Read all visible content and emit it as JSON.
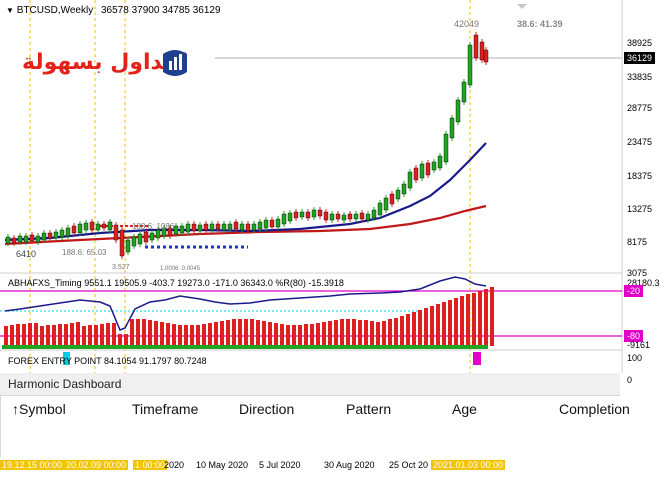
{
  "symbol_label": "BTCUSD,Weekly",
  "ohlc": "36578 37900 34785 36129",
  "logo_text": "التداول بسهولة",
  "peak_label": "42049",
  "overlap_label": "38.6: 41.39",
  "low_label": "6410",
  "mini_label_1": "188.6: 1086",
  "mini_label_2": "188.6: 65.03",
  "mini_label_3": "3.527",
  "mini_label_4": "1.0006: 0.0045",
  "price_axis": [
    "38925",
    "33835",
    "28775",
    "23475",
    "18375",
    "13275",
    "8175",
    "3075"
  ],
  "current_price": "36129",
  "indicator1": {
    "name": "ABHAFXS_Timing 9551.1 19505.9 -403.7 19273.0 -171.0 36343.0 %R(80) -15.3918",
    "scale_top": "28180.3",
    "level_high": "-20",
    "level_low": "-80",
    "scale_bottom": "-9161"
  },
  "indicator2": {
    "name": "FOREX ENTRY POINT 84.1054 91.1797 80.7248",
    "scale_top": "100",
    "scale_bottom": "0"
  },
  "dashboard": {
    "title": "Harmonic Dashboard",
    "columns": [
      "↑Symbol",
      "Timeframe",
      "Direction",
      "Pattern",
      "Age",
      "Completion"
    ]
  },
  "time_axis": {
    "highlighted": [
      "19.12.15 00:00",
      "20.02.09 00:00",
      "1 00:00"
    ],
    "labels": [
      "2020",
      "10 May 2020",
      "5 Jul 2020",
      "30 Aug 2020",
      "25 Oct 20"
    ],
    "highlighted_end": "2021.01.03 00:00"
  },
  "colors": {
    "bull": "#1fa51f",
    "bear": "#e02020",
    "ma_fast": "#1a1a8c",
    "ma_slow": "#c01818",
    "level_line": "#e000c8",
    "cyan": "#00d0e0",
    "crosshair": "#f2c200"
  }
}
